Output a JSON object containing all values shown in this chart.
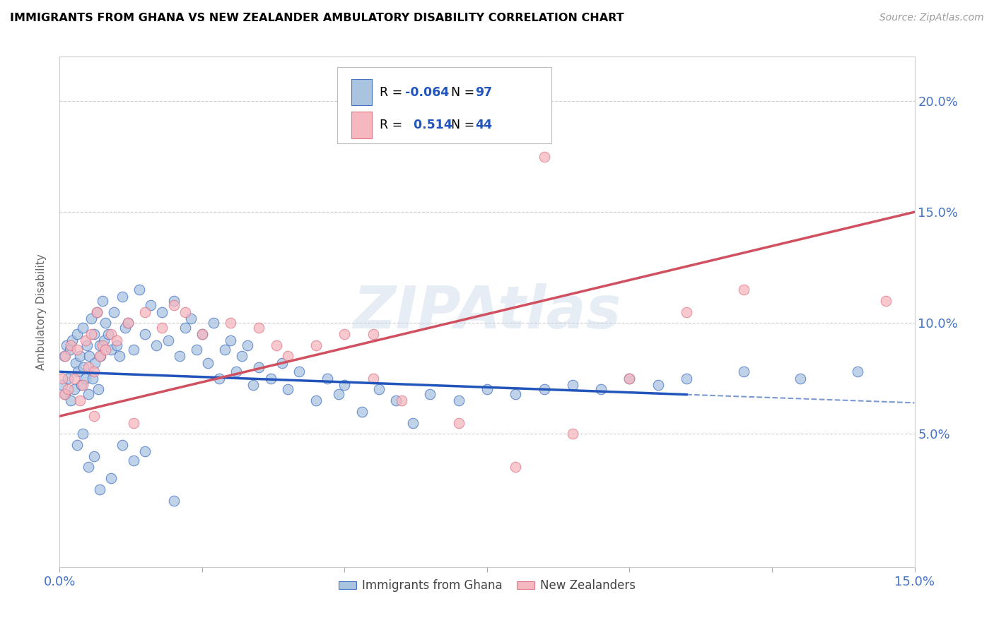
{
  "title": "IMMIGRANTS FROM GHANA VS NEW ZEALANDER AMBULATORY DISABILITY CORRELATION CHART",
  "source": "Source: ZipAtlas.com",
  "ylabel": "Ambulatory Disability",
  "xmin": 0.0,
  "xmax": 15.0,
  "ymin": -1.0,
  "ymax": 22.0,
  "yticks": [
    5.0,
    10.0,
    15.0,
    20.0
  ],
  "xticks": [
    0.0,
    2.5,
    5.0,
    7.5,
    10.0,
    12.5,
    15.0
  ],
  "blue_color": "#aac4e0",
  "pink_color": "#f5b8c0",
  "blue_edge_color": "#4472c4",
  "pink_edge_color": "#e07888",
  "blue_line_color": "#2255bb",
  "pink_line_color": "#d05060",
  "blue_R": -0.064,
  "blue_N": 97,
  "pink_R": 0.514,
  "pink_N": 44,
  "legend_blue_label": "Immigrants from Ghana",
  "legend_pink_label": "New Zealanders",
  "watermark": "ZIPAtlas",
  "blue_line_solid_end": 11.0,
  "blue_line_start_y": 7.8,
  "blue_line_end_y": 6.4,
  "pink_line_start_y": 5.8,
  "pink_line_end_y": 15.0,
  "blue_scatter_x": [
    0.05,
    0.08,
    0.1,
    0.12,
    0.15,
    0.18,
    0.2,
    0.22,
    0.25,
    0.28,
    0.3,
    0.32,
    0.35,
    0.38,
    0.4,
    0.42,
    0.45,
    0.48,
    0.5,
    0.52,
    0.55,
    0.58,
    0.6,
    0.62,
    0.65,
    0.68,
    0.7,
    0.72,
    0.75,
    0.78,
    0.8,
    0.85,
    0.9,
    0.95,
    1.0,
    1.05,
    1.1,
    1.15,
    1.2,
    1.3,
    1.4,
    1.5,
    1.6,
    1.7,
    1.8,
    1.9,
    2.0,
    2.1,
    2.2,
    2.3,
    2.4,
    2.5,
    2.6,
    2.7,
    2.8,
    2.9,
    3.0,
    3.1,
    3.2,
    3.3,
    3.4,
    3.5,
    3.7,
    3.9,
    4.0,
    4.2,
    4.5,
    4.7,
    4.9,
    5.0,
    5.3,
    5.6,
    5.9,
    6.2,
    6.5,
    7.0,
    7.5,
    8.0,
    8.5,
    9.0,
    9.5,
    10.0,
    10.5,
    11.0,
    12.0,
    13.0,
    14.0,
    0.3,
    0.4,
    0.5,
    0.6,
    0.7,
    0.9,
    1.1,
    1.3,
    1.5,
    2.0
  ],
  "blue_scatter_y": [
    7.2,
    8.5,
    6.8,
    9.0,
    7.5,
    8.8,
    6.5,
    9.2,
    7.0,
    8.2,
    9.5,
    7.8,
    8.5,
    7.2,
    9.8,
    8.0,
    7.5,
    9.0,
    6.8,
    8.5,
    10.2,
    7.5,
    9.5,
    8.2,
    10.5,
    7.0,
    9.0,
    8.5,
    11.0,
    9.2,
    10.0,
    9.5,
    8.8,
    10.5,
    9.0,
    8.5,
    11.2,
    9.8,
    10.0,
    8.8,
    11.5,
    9.5,
    10.8,
    9.0,
    10.5,
    9.2,
    11.0,
    8.5,
    9.8,
    10.2,
    8.8,
    9.5,
    8.2,
    10.0,
    7.5,
    8.8,
    9.2,
    7.8,
    8.5,
    9.0,
    7.2,
    8.0,
    7.5,
    8.2,
    7.0,
    7.8,
    6.5,
    7.5,
    6.8,
    7.2,
    6.0,
    7.0,
    6.5,
    5.5,
    6.8,
    6.5,
    7.0,
    6.8,
    7.0,
    7.2,
    7.0,
    7.5,
    7.2,
    7.5,
    7.8,
    7.5,
    7.8,
    4.5,
    5.0,
    3.5,
    4.0,
    2.5,
    3.0,
    4.5,
    3.8,
    4.2,
    2.0
  ],
  "pink_scatter_x": [
    0.05,
    0.08,
    0.1,
    0.15,
    0.2,
    0.25,
    0.3,
    0.35,
    0.4,
    0.45,
    0.5,
    0.55,
    0.6,
    0.65,
    0.7,
    0.75,
    0.8,
    0.9,
    1.0,
    1.2,
    1.5,
    1.8,
    2.0,
    2.5,
    3.0,
    3.5,
    4.0,
    4.5,
    5.0,
    5.5,
    6.0,
    7.0,
    8.0,
    9.0,
    10.0,
    11.0,
    12.0,
    14.5,
    2.2,
    3.8,
    0.6,
    1.3,
    5.5,
    8.5
  ],
  "pink_scatter_y": [
    7.5,
    6.8,
    8.5,
    7.0,
    9.0,
    7.5,
    8.8,
    6.5,
    7.2,
    9.2,
    8.0,
    9.5,
    7.8,
    10.5,
    8.5,
    9.0,
    8.8,
    9.5,
    9.2,
    10.0,
    10.5,
    9.8,
    10.8,
    9.5,
    10.0,
    9.8,
    8.5,
    9.0,
    9.5,
    7.5,
    6.5,
    5.5,
    3.5,
    5.0,
    7.5,
    10.5,
    11.5,
    11.0,
    10.5,
    9.0,
    5.8,
    5.5,
    9.5,
    17.5
  ]
}
